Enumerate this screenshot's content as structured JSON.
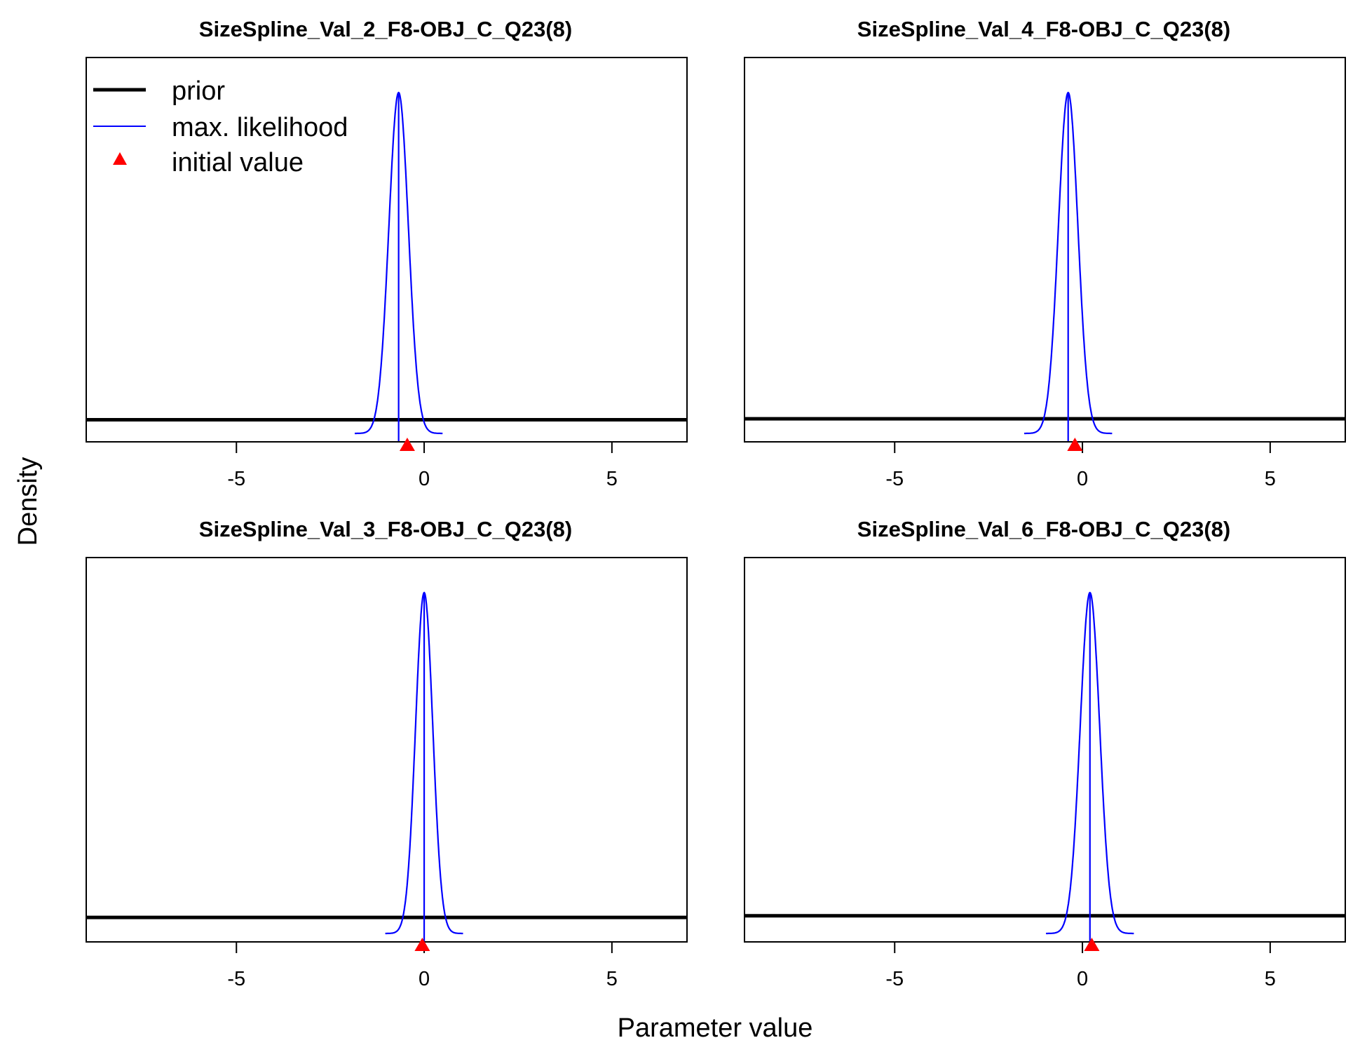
{
  "figure": {
    "ylabel": "Density",
    "xlabel": "Parameter value",
    "legend": {
      "placement": "top-left of first panel",
      "items": [
        {
          "label": "prior",
          "color": "#000000",
          "kind": "line-thick"
        },
        {
          "label": "max. likelihood",
          "color": "#0000ff",
          "kind": "line-thin"
        },
        {
          "label": "initial value",
          "color": "#ff0000",
          "kind": "triangle"
        }
      ]
    }
  },
  "chart_data": [
    {
      "type": "line",
      "title": "SizeSpline_Val_2_F8-OBJ_C_Q23(8)",
      "xlim": [
        -9,
        7
      ],
      "xticks": [
        -5,
        0,
        5
      ],
      "prior_level": 0.04,
      "ml_mean": -0.68,
      "ml_sd": 0.26,
      "initial_value": -0.45,
      "series": [
        {
          "name": "prior",
          "color": "#000000"
        },
        {
          "name": "max. likelihood",
          "color": "#0000ff"
        },
        {
          "name": "initial value",
          "color": "#ff0000"
        }
      ]
    },
    {
      "type": "line",
      "title": "SizeSpline_Val_4_F8-OBJ_C_Q23(8)",
      "xlim": [
        -9,
        7
      ],
      "xticks": [
        -5,
        0,
        5
      ],
      "prior_level": 0.043,
      "ml_mean": -0.38,
      "ml_sd": 0.26,
      "initial_value": -0.2,
      "series": [
        {
          "name": "prior",
          "color": "#000000"
        },
        {
          "name": "max. likelihood",
          "color": "#0000ff"
        },
        {
          "name": "initial value",
          "color": "#ff0000"
        }
      ]
    },
    {
      "type": "line",
      "title": "SizeSpline_Val_3_F8-OBJ_C_Q23(8)",
      "xlim": [
        -9,
        7
      ],
      "xticks": [
        -5,
        0,
        5
      ],
      "prior_level": 0.047,
      "ml_mean": 0.0,
      "ml_sd": 0.23,
      "initial_value": -0.05,
      "series": [
        {
          "name": "prior",
          "color": "#000000"
        },
        {
          "name": "max. likelihood",
          "color": "#0000ff"
        },
        {
          "name": "initial value",
          "color": "#ff0000"
        }
      ]
    },
    {
      "type": "line",
      "title": "SizeSpline_Val_6_F8-OBJ_C_Q23(8)",
      "xlim": [
        -9,
        7
      ],
      "xticks": [
        -5,
        0,
        5
      ],
      "prior_level": 0.052,
      "ml_mean": 0.2,
      "ml_sd": 0.26,
      "initial_value": 0.25,
      "series": [
        {
          "name": "prior",
          "color": "#000000"
        },
        {
          "name": "max. likelihood",
          "color": "#0000ff"
        },
        {
          "name": "initial value",
          "color": "#ff0000"
        }
      ]
    }
  ]
}
